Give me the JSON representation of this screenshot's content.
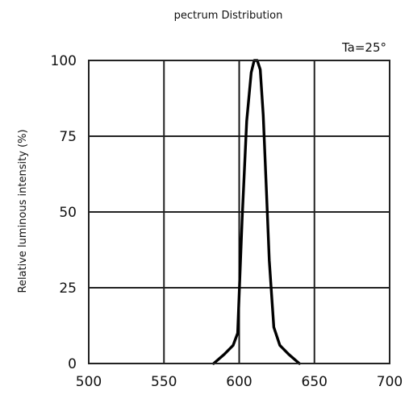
{
  "chart_data": {
    "type": "line",
    "title": "pectrum Distribution",
    "annotation": "Ta=25°",
    "xlabel": "",
    "ylabel": "Relative luminous intensity  (%)",
    "xlim": [
      500,
      700
    ],
    "ylim": [
      0,
      100
    ],
    "x_ticks": [
      "500",
      "550",
      "600",
      "650",
      "700"
    ],
    "y_ticks": [
      "0",
      "25",
      "50",
      "75",
      "100"
    ],
    "grid": true,
    "reference_line_x": 600,
    "series": [
      {
        "x": [
          583,
          590,
          596,
          599,
          602,
          605,
          608,
          610,
          612,
          614,
          616,
          618,
          620,
          623,
          627,
          633,
          640
        ],
        "y": [
          0,
          3,
          6,
          10,
          48,
          80,
          96,
          100,
          100,
          97,
          82,
          58,
          34,
          12,
          6,
          3,
          0
        ]
      }
    ]
  }
}
